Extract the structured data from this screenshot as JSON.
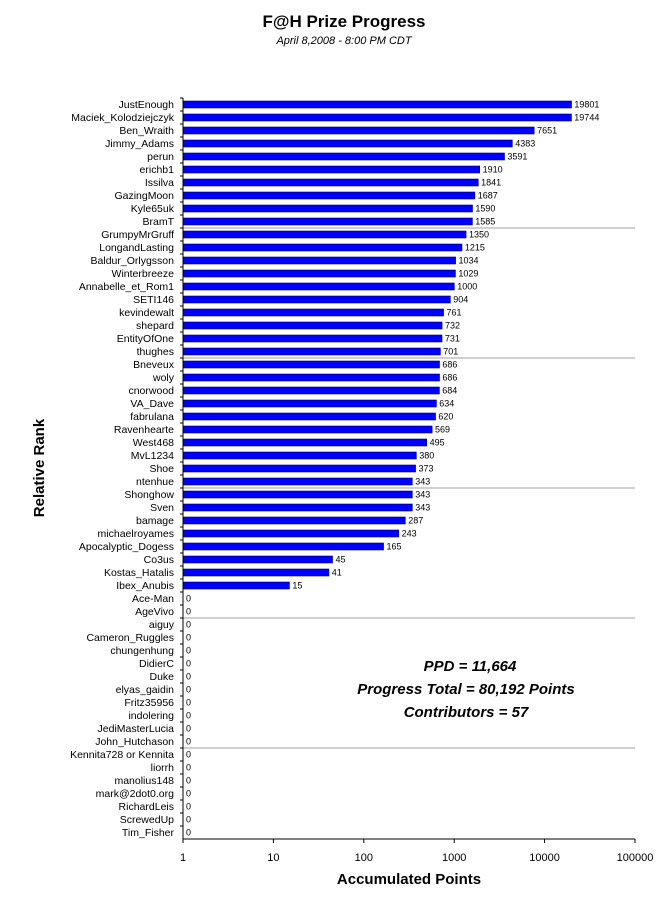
{
  "chart_data": {
    "type": "bar",
    "orientation": "horizontal",
    "title": "F@H Prize Progress",
    "subtitle": "April 8,2008 -  8:00 PM CDT",
    "xlabel": "Accumulated Points",
    "ylabel": "Relative Rank",
    "x_scale": "log",
    "xlim": [
      1,
      100000
    ],
    "x_ticks": [
      "1",
      "10",
      "100",
      "1000",
      "10000",
      "100000"
    ],
    "bar_color": "#0000ff",
    "bar_border_color": "#000080",
    "grid": "horizontal separators every 10 rows",
    "categories": [
      "JustEnough",
      "Maciek_Kolodziejczyk",
      "Ben_Wraith",
      "Jimmy_Adams",
      "perun",
      "erichb1",
      "Issilva",
      "GazingMoon",
      "Kyle65uk",
      "BramT",
      "GrumpyMrGruff",
      "LongandLasting",
      "Baldur_Orlygsson",
      "Winterbreeze",
      "Annabelle_et_Rom1",
      "SETI146",
      "kevindewalt",
      "shepard",
      "EntityOfOne",
      "thughes",
      "Bneveux",
      "woly",
      "cnorwood",
      "VA_Dave",
      "fabrulana",
      "Ravenhearte",
      "West468",
      "MvL1234",
      "Shoe",
      "ntenhue",
      "Shonghow",
      "Sven",
      "bamage",
      "michaelroyames",
      "Apocalyptic_Dogess",
      "Co3us",
      "Kostas_Hatalis",
      "Ibex_Anubis",
      "Ace-Man",
      "AgeVivo",
      "aiguy",
      "Cameron_Ruggles",
      "chungenhung",
      "DidierC",
      "Duke",
      "elyas_gaidin",
      "Fritz35956",
      "indolering",
      "JediMasterLucia",
      "John_Hutchason",
      "Kennita728 or Kennita",
      "liorrh",
      "manolius148",
      "mark@2dot0.org",
      "RichardLeis",
      "ScrewedUp",
      "Tim_Fisher"
    ],
    "values": [
      19801,
      19744,
      7651,
      4383,
      3591,
      1910,
      1841,
      1687,
      1590,
      1585,
      1350,
      1215,
      1034,
      1029,
      1000,
      904,
      761,
      732,
      731,
      701,
      686,
      686,
      684,
      634,
      620,
      569,
      495,
      380,
      373,
      343,
      343,
      343,
      287,
      243,
      165,
      45,
      41,
      15,
      0,
      0,
      0,
      0,
      0,
      0,
      0,
      0,
      0,
      0,
      0,
      0,
      0,
      0,
      0,
      0,
      0,
      0,
      0
    ],
    "annotations": [
      "PPD = 11,664",
      "Progress Total = 80,192 Points",
      "Contributors = 57"
    ]
  }
}
